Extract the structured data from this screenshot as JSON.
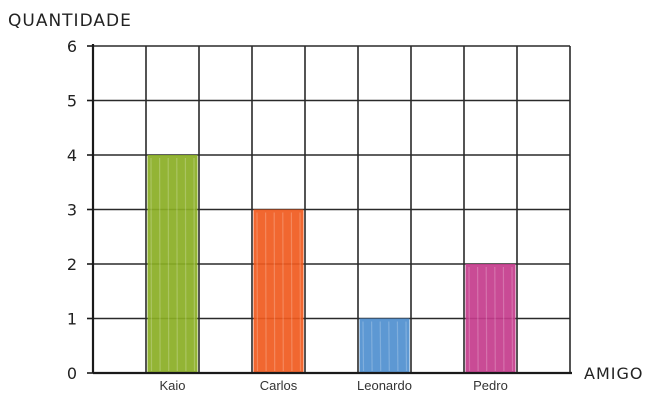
{
  "chart_data": {
    "type": "bar",
    "ylabel": "QUANTIDADE",
    "xlabel": "AMIGO",
    "categories": [
      "Kaio",
      "Carlos",
      "Leonardo",
      "Pedro"
    ],
    "values": [
      4,
      3,
      1,
      2
    ],
    "ylim": [
      0,
      6
    ],
    "yticks": [
      "0",
      "1",
      "2",
      "3",
      "4",
      "5",
      "6"
    ],
    "grid": true,
    "colors": [
      "#8aae24",
      "#f05a1e",
      "#4f8fcf",
      "#c43c8c"
    ],
    "legend": false
  }
}
